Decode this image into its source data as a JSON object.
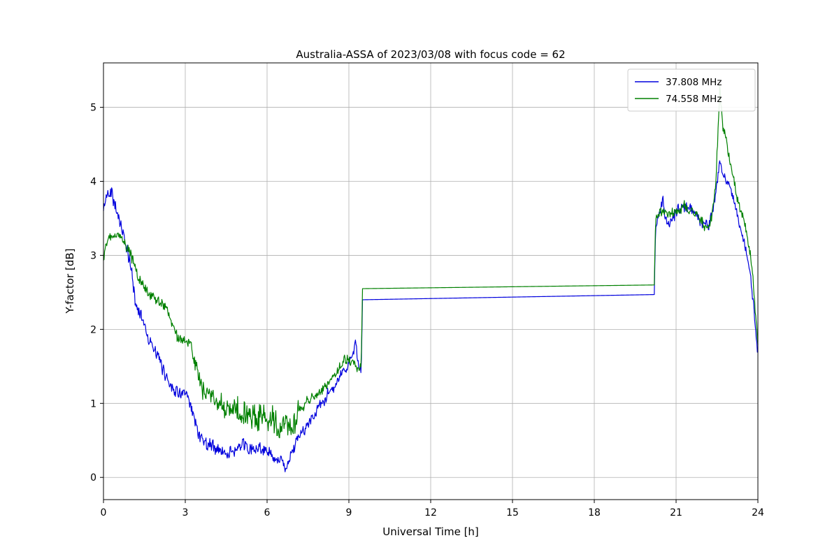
{
  "figure": {
    "title": "Australia-ASSA of 2023/03/08 with focus code = 62",
    "xlabel": "Universal Time [h]",
    "ylabel": "Y-factor [dB]"
  },
  "legend": {
    "items": [
      {
        "label": "37.808 MHz",
        "color": "#0000dd"
      },
      {
        "label": "74.558 MHz",
        "color": "#008000"
      }
    ]
  },
  "chart_data": {
    "type": "line",
    "title": "Australia-ASSA of 2023/03/08 with focus code = 62",
    "xlabel": "Universal Time [h]",
    "ylabel": "Y-factor [dB]",
    "xlim": [
      0,
      24
    ],
    "ylim": [
      -0.3,
      5.6
    ],
    "x_ticks": [
      0,
      3,
      6,
      9,
      12,
      15,
      18,
      21,
      24
    ],
    "y_ticks": [
      0,
      1,
      2,
      3,
      4,
      5
    ],
    "grid": true,
    "grid_color": "#b0b0b0",
    "legend_position": "upper right",
    "sample_step_h": 0.02,
    "noise_seed": 42,
    "series": [
      {
        "name": "37.808 MHz",
        "color": "#0000dd",
        "anchors": [
          [
            0.0,
            3.6
          ],
          [
            0.15,
            3.85
          ],
          [
            0.3,
            3.9
          ],
          [
            0.5,
            3.6
          ],
          [
            0.7,
            3.3
          ],
          [
            0.9,
            3.0
          ],
          [
            1.0,
            2.85
          ],
          [
            1.2,
            2.3
          ],
          [
            1.4,
            2.2
          ],
          [
            1.6,
            1.95
          ],
          [
            1.8,
            1.75
          ],
          [
            2.0,
            1.6
          ],
          [
            2.2,
            1.45
          ],
          [
            2.4,
            1.3
          ],
          [
            2.6,
            1.2
          ],
          [
            2.8,
            1.15
          ],
          [
            3.0,
            1.1
          ],
          [
            3.2,
            0.95
          ],
          [
            3.35,
            0.75
          ],
          [
            3.5,
            0.6
          ],
          [
            3.7,
            0.5
          ],
          [
            4.0,
            0.42
          ],
          [
            4.3,
            0.35
          ],
          [
            4.6,
            0.32
          ],
          [
            5.0,
            0.42
          ],
          [
            5.3,
            0.38
          ],
          [
            5.6,
            0.35
          ],
          [
            5.9,
            0.4
          ],
          [
            6.1,
            0.3
          ],
          [
            6.3,
            0.18
          ],
          [
            6.5,
            0.22
          ],
          [
            6.7,
            0.18
          ],
          [
            6.9,
            0.3
          ],
          [
            7.1,
            0.5
          ],
          [
            7.4,
            0.68
          ],
          [
            7.7,
            0.85
          ],
          [
            8.0,
            1.0
          ],
          [
            8.3,
            1.15
          ],
          [
            8.6,
            1.3
          ],
          [
            8.9,
            1.5
          ],
          [
            9.1,
            1.6
          ],
          [
            9.25,
            1.8
          ],
          [
            9.35,
            1.55
          ],
          [
            9.45,
            1.4
          ],
          [
            9.5,
            2.4
          ],
          [
            20.2,
            2.47
          ],
          [
            20.25,
            3.5
          ],
          [
            20.4,
            3.55
          ],
          [
            20.5,
            3.8
          ],
          [
            20.6,
            3.5
          ],
          [
            20.8,
            3.45
          ],
          [
            21.0,
            3.55
          ],
          [
            21.2,
            3.6
          ],
          [
            21.4,
            3.65
          ],
          [
            21.6,
            3.6
          ],
          [
            21.8,
            3.55
          ],
          [
            22.0,
            3.45
          ],
          [
            22.2,
            3.35
          ],
          [
            22.4,
            3.7
          ],
          [
            22.6,
            4.3
          ],
          [
            22.75,
            4.1
          ],
          [
            23.0,
            3.9
          ],
          [
            23.2,
            3.6
          ],
          [
            23.5,
            3.2
          ],
          [
            23.7,
            2.8
          ],
          [
            23.85,
            2.3
          ],
          [
            24.0,
            1.65
          ]
        ],
        "noise": [
          [
            0.0,
            1.2,
            0.15
          ],
          [
            1.2,
            3.0,
            0.12
          ],
          [
            3.0,
            7.0,
            0.13
          ],
          [
            7.0,
            9.43,
            0.1
          ],
          [
            9.43,
            20.21,
            0.0
          ],
          [
            20.21,
            22.3,
            0.12
          ],
          [
            22.3,
            24.0,
            0.09
          ]
        ]
      },
      {
        "name": "74.558 MHz",
        "color": "#008000",
        "anchors": [
          [
            0.0,
            2.95
          ],
          [
            0.2,
            3.25
          ],
          [
            0.5,
            3.3
          ],
          [
            0.8,
            3.15
          ],
          [
            1.0,
            3.0
          ],
          [
            1.3,
            2.7
          ],
          [
            1.5,
            2.55
          ],
          [
            1.7,
            2.45
          ],
          [
            2.0,
            2.4
          ],
          [
            2.3,
            2.3
          ],
          [
            2.5,
            2.1
          ],
          [
            2.7,
            1.9
          ],
          [
            3.0,
            1.85
          ],
          [
            3.2,
            1.8
          ],
          [
            3.4,
            1.5
          ],
          [
            3.6,
            1.25
          ],
          [
            3.9,
            1.1
          ],
          [
            4.2,
            1.0
          ],
          [
            4.5,
            0.9
          ],
          [
            4.8,
            0.95
          ],
          [
            5.1,
            0.85
          ],
          [
            5.4,
            0.85
          ],
          [
            5.7,
            0.8
          ],
          [
            6.0,
            0.9
          ],
          [
            6.3,
            0.75
          ],
          [
            6.6,
            0.65
          ],
          [
            6.9,
            0.75
          ],
          [
            7.2,
            0.9
          ],
          [
            7.5,
            1.05
          ],
          [
            7.8,
            1.1
          ],
          [
            8.1,
            1.2
          ],
          [
            8.4,
            1.35
          ],
          [
            8.7,
            1.5
          ],
          [
            9.0,
            1.6
          ],
          [
            9.2,
            1.55
          ],
          [
            9.35,
            1.45
          ],
          [
            9.45,
            1.5
          ],
          [
            9.5,
            2.55
          ],
          [
            20.2,
            2.6
          ],
          [
            20.25,
            3.5
          ],
          [
            20.5,
            3.6
          ],
          [
            20.8,
            3.55
          ],
          [
            21.0,
            3.6
          ],
          [
            21.3,
            3.65
          ],
          [
            21.6,
            3.6
          ],
          [
            21.9,
            3.5
          ],
          [
            22.1,
            3.3
          ],
          [
            22.3,
            3.5
          ],
          [
            22.45,
            3.9
          ],
          [
            22.6,
            5.25
          ],
          [
            22.7,
            4.8
          ],
          [
            22.85,
            4.5
          ],
          [
            23.0,
            4.2
          ],
          [
            23.3,
            3.7
          ],
          [
            23.6,
            3.3
          ],
          [
            23.8,
            2.8
          ],
          [
            24.0,
            1.8
          ]
        ],
        "noise": [
          [
            0.0,
            1.0,
            0.08
          ],
          [
            1.0,
            3.3,
            0.1
          ],
          [
            3.3,
            4.4,
            0.18
          ],
          [
            4.4,
            7.2,
            0.27
          ],
          [
            7.2,
            9.43,
            0.1
          ],
          [
            9.43,
            20.21,
            0.0
          ],
          [
            20.21,
            22.2,
            0.1
          ],
          [
            22.2,
            24.0,
            0.1
          ]
        ]
      }
    ]
  }
}
